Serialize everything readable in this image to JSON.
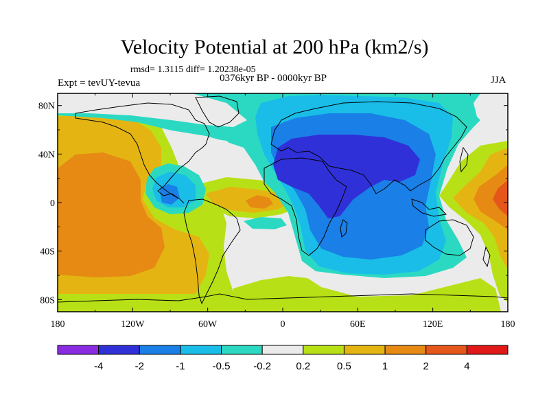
{
  "title": "Velocity Potential at 200 hPa (km2/s)",
  "stats": "rmsd= 1.3115 diff= 1.20238e-05",
  "period": "0376kyr BP - 0000kyr BP",
  "experiment": "Expt = tevUY-tevua",
  "season": "JJA",
  "map": {
    "lon_range": [
      -180,
      180
    ],
    "lat_range": [
      -90,
      90
    ],
    "lon_ticks": [
      {
        "value": -180,
        "label": "180"
      },
      {
        "value": -120,
        "label": "120W"
      },
      {
        "value": -60,
        "label": "60W"
      },
      {
        "value": 0,
        "label": "0"
      },
      {
        "value": 60,
        "label": "60E"
      },
      {
        "value": 120,
        "label": "120E"
      },
      {
        "value": 180,
        "label": "180"
      }
    ],
    "lat_ticks": [
      {
        "value": 80,
        "label": "80N"
      },
      {
        "value": 40,
        "label": "40N"
      },
      {
        "value": 0,
        "label": "0"
      },
      {
        "value": -40,
        "label": "40S"
      },
      {
        "value": -80,
        "label": "80S"
      }
    ],
    "minor_lon_ticks": [
      -150,
      -90,
      -30,
      30,
      90,
      150
    ],
    "minor_lat_ticks": [
      60,
      20,
      -20,
      -60
    ]
  },
  "colorbar": {
    "colors": [
      "#8a2be2",
      "#3030d8",
      "#1a7fe6",
      "#19bde8",
      "#2bd9c2",
      "#ebebeb",
      "#b8e016",
      "#e4b512",
      "#e68a14",
      "#e5561a",
      "#e01818"
    ],
    "labels": [
      "-4",
      "-2",
      "-1",
      "-0.5",
      "-0.2",
      "0.2",
      "0.5",
      "1",
      "2",
      "4"
    ]
  }
}
